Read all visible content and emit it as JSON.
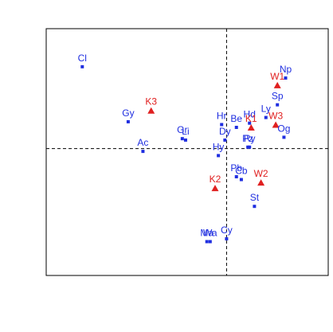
{
  "chart_data": {
    "type": "scatter",
    "title": "",
    "xlabel": "",
    "ylabel": "",
    "xlim": [
      -1.1,
      0.62
    ],
    "ylim": [
      -0.9,
      0.85
    ],
    "reference_lines": {
      "x": 0,
      "y": 0
    },
    "grid": false,
    "legend": "none",
    "colors": {
      "species": "#1f2ee0",
      "sites": "#e02020",
      "axes": "#000000"
    },
    "series": [
      {
        "marker": "square",
        "color": "#1f2ee0",
        "points": [
          {
            "label": "Cl",
            "x": -0.88,
            "y": 0.58
          },
          {
            "label": "Gy",
            "x": -0.6,
            "y": 0.19
          },
          {
            "label": "Ac",
            "x": -0.51,
            "y": -0.02
          },
          {
            "label": "Gr",
            "x": -0.27,
            "y": 0.07
          },
          {
            "label": "Li",
            "x": -0.25,
            "y": 0.06
          },
          {
            "label": "Hr",
            "x": -0.03,
            "y": 0.17
          },
          {
            "label": "Be",
            "x": 0.06,
            "y": 0.15
          },
          {
            "label": "Dy",
            "x": -0.01,
            "y": 0.06
          },
          {
            "label": "Hy",
            "x": -0.05,
            "y": -0.05
          },
          {
            "label": "Hd",
            "x": 0.14,
            "y": 0.18
          },
          {
            "label": "Ly",
            "x": 0.24,
            "y": 0.22
          },
          {
            "label": "Sp",
            "x": 0.31,
            "y": 0.31
          },
          {
            "label": "Np",
            "x": 0.36,
            "y": 0.5
          },
          {
            "label": "Og",
            "x": 0.35,
            "y": 0.08
          },
          {
            "label": "Pz",
            "x": 0.13,
            "y": 0.01
          },
          {
            "label": "Ry",
            "x": 0.14,
            "y": 0.01
          },
          {
            "label": "Pb",
            "x": 0.06,
            "y": -0.2
          },
          {
            "label": "Cb",
            "x": 0.09,
            "y": -0.22
          },
          {
            "label": "St",
            "x": 0.17,
            "y": -0.41
          },
          {
            "label": "Cy",
            "x": 0.0,
            "y": -0.64
          },
          {
            "label": "Wa",
            "x": -0.1,
            "y": -0.66
          },
          {
            "label": "Ma",
            "x": -0.12,
            "y": -0.66
          }
        ]
      },
      {
        "marker": "triangle",
        "color": "#e02020",
        "points": [
          {
            "label": "W1",
            "x": 0.31,
            "y": 0.45
          },
          {
            "label": "K3",
            "x": -0.46,
            "y": 0.27
          },
          {
            "label": "K1",
            "x": 0.15,
            "y": 0.15
          },
          {
            "label": "W3",
            "x": 0.3,
            "y": 0.17
          },
          {
            "label": "W2",
            "x": 0.21,
            "y": -0.24
          },
          {
            "label": "K2",
            "x": -0.07,
            "y": -0.28
          }
        ]
      }
    ]
  }
}
